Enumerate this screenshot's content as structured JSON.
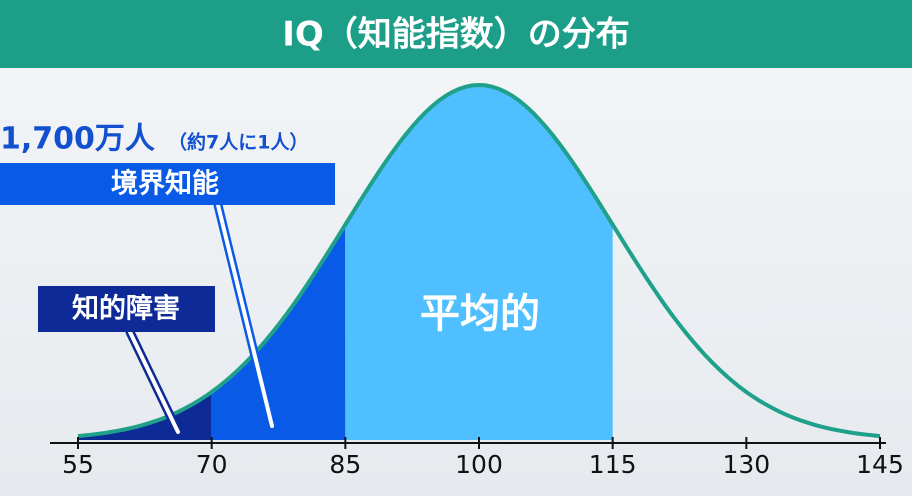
{
  "chart_data": {
    "type": "normal",
    "title": "IQ（知能指数）の分布",
    "curve": {
      "mean": 100,
      "sd": 15,
      "color": "#1fa08a"
    },
    "xlim": [
      55,
      145
    ],
    "xticks": [
      55,
      70,
      85,
      100,
      115,
      130,
      145
    ],
    "regions": [
      {
        "label": "知的障害",
        "from": 55,
        "to": 70,
        "color": "#0d2a96"
      },
      {
        "label": "境界知能",
        "from": 70,
        "to": 85,
        "color": "#0a5ae8"
      },
      {
        "label": "平均的",
        "from": 85,
        "to": 115,
        "color": "#4fbfff"
      }
    ],
    "annotation": "1,700万人",
    "annotation_note": "（約7人に1人）"
  }
}
